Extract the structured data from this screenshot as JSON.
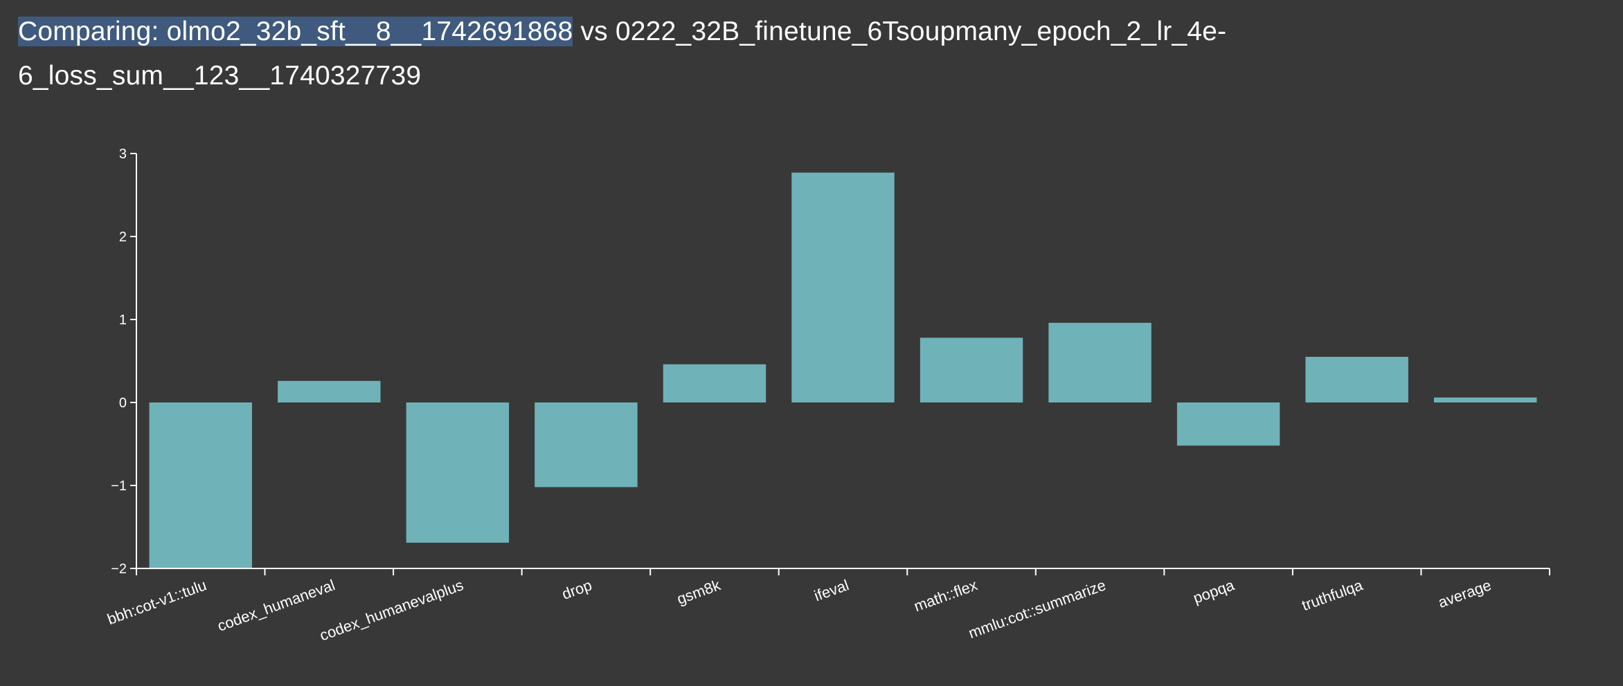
{
  "header": {
    "title_highlight": "Comparing: olmo2_32b_sft__8__1742691868",
    "title_rest": " vs 0222_32B_finetune_6Tsoupmany_epoch_2_lr_4e-6_loss_sum__123__1740327739"
  },
  "colors": {
    "background": "#383838",
    "bar": "#6fb2b8",
    "axis": "#ffffff",
    "selection_highlight": "#3f5a7e"
  },
  "chart_data": {
    "type": "bar",
    "title": "",
    "xlabel": "",
    "ylabel": "",
    "ylim": [
      -2,
      3
    ],
    "yticks": [
      -2,
      -1,
      0,
      1,
      2,
      3
    ],
    "ytick_labels": [
      "−2",
      "−1",
      "0",
      "1",
      "2",
      "3"
    ],
    "grid": false,
    "legend": "none",
    "categories": [
      "bbh:cot-v1::tulu",
      "codex_humaneval",
      "codex_humanevalplus",
      "drop",
      "gsm8k",
      "ifeval",
      "math::flex",
      "mmlu:cot::summarize",
      "popqa",
      "truthfulqa",
      "average"
    ],
    "values": [
      -2.0,
      0.26,
      -1.69,
      -1.02,
      0.46,
      2.77,
      0.78,
      0.96,
      -0.52,
      0.55,
      0.06
    ]
  }
}
